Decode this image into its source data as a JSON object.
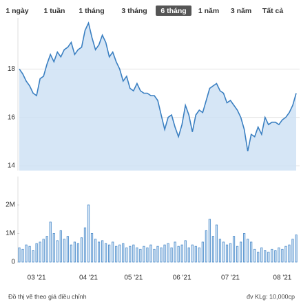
{
  "tabs": [
    "1 ngày",
    "1 tuần",
    "1 tháng",
    "3 tháng",
    "6 tháng",
    "1 năm",
    "3 năm",
    "Tất cả"
  ],
  "selected_tab": 4,
  "chart_data": [
    {
      "type": "area",
      "color": "#3a7fc1",
      "fill": "#cfe2f4",
      "values": [
        18.0,
        17.8,
        17.5,
        17.3,
        17.0,
        16.9,
        17.6,
        17.7,
        18.2,
        18.6,
        18.3,
        18.7,
        18.5,
        18.8,
        18.9,
        19.1,
        18.6,
        18.8,
        18.9,
        19.6,
        19.9,
        19.3,
        18.8,
        19.0,
        19.4,
        19.1,
        18.5,
        18.7,
        18.3,
        18.0,
        17.5,
        17.7,
        17.2,
        17.1,
        17.4,
        17.1,
        17.0,
        17.0,
        16.9,
        16.9,
        16.7,
        16.1,
        15.5,
        16.0,
        16.1,
        15.6,
        15.2,
        15.7,
        16.5,
        16.1,
        15.4,
        16.1,
        16.3,
        16.2,
        16.7,
        17.2,
        17.3,
        17.4,
        17.1,
        17.0,
        16.6,
        16.7,
        16.5,
        16.3,
        16.0,
        15.5,
        14.6,
        15.3,
        15.2,
        15.6,
        15.3,
        16.0,
        15.7,
        15.8,
        15.8,
        15.7,
        15.9,
        16.0,
        16.2,
        16.5,
        17.0
      ],
      "ylim": [
        13.8,
        20
      ],
      "yticks": [
        14,
        16,
        18
      ],
      "grid": true
    },
    {
      "type": "bar",
      "color": "#4a8ac9",
      "categories": [
        null,
        null,
        null,
        null,
        null,
        "03 '21",
        null,
        null,
        null,
        null,
        null,
        null,
        null,
        null,
        null,
        null,
        null,
        null,
        null,
        null,
        "04 '21",
        null,
        null,
        null,
        null,
        null,
        null,
        null,
        null,
        null,
        null,
        null,
        null,
        "05 '21",
        null,
        null,
        null,
        null,
        null,
        null,
        null,
        null,
        null,
        null,
        null,
        null,
        null,
        "06 '21",
        null,
        null,
        null,
        null,
        null,
        null,
        null,
        null,
        null,
        null,
        null,
        null,
        null,
        "07 '21",
        null,
        null,
        null,
        null,
        null,
        null,
        null,
        null,
        null,
        null,
        null,
        null,
        null,
        null,
        "08 '21",
        null,
        null,
        null,
        null
      ],
      "values": [
        500000,
        450000,
        600000,
        550000,
        400000,
        650000,
        700000,
        800000,
        900000,
        1400000,
        1000000,
        750000,
        1100000,
        800000,
        900000,
        600000,
        700000,
        650000,
        850000,
        1200000,
        2000000,
        1000000,
        800000,
        700000,
        750000,
        650000,
        600000,
        700000,
        550000,
        600000,
        650000,
        500000,
        550000,
        600000,
        500000,
        450000,
        550000,
        500000,
        600000,
        450000,
        550000,
        500000,
        600000,
        650000,
        500000,
        700000,
        550000,
        600000,
        750000,
        500000,
        600000,
        550000,
        500000,
        700000,
        1100000,
        1500000,
        900000,
        1300000,
        800000,
        700000,
        600000,
        650000,
        900000,
        550000,
        700000,
        1000000,
        800000,
        700000,
        450000,
        350000,
        500000,
        400000,
        350000,
        450000,
        400000,
        500000,
        450000,
        550000,
        600000,
        800000,
        950000
      ],
      "ylim": [
        0,
        2900000
      ],
      "yticks": [
        0,
        {
          "value": 1000000,
          "label": "1M"
        },
        {
          "value": 2000000,
          "label": "2M"
        }
      ],
      "grid": false
    }
  ],
  "footer": {
    "left": "Đồ thị vẽ theo giá điều chỉnh",
    "right": "đv KLg: 10,000cp"
  }
}
